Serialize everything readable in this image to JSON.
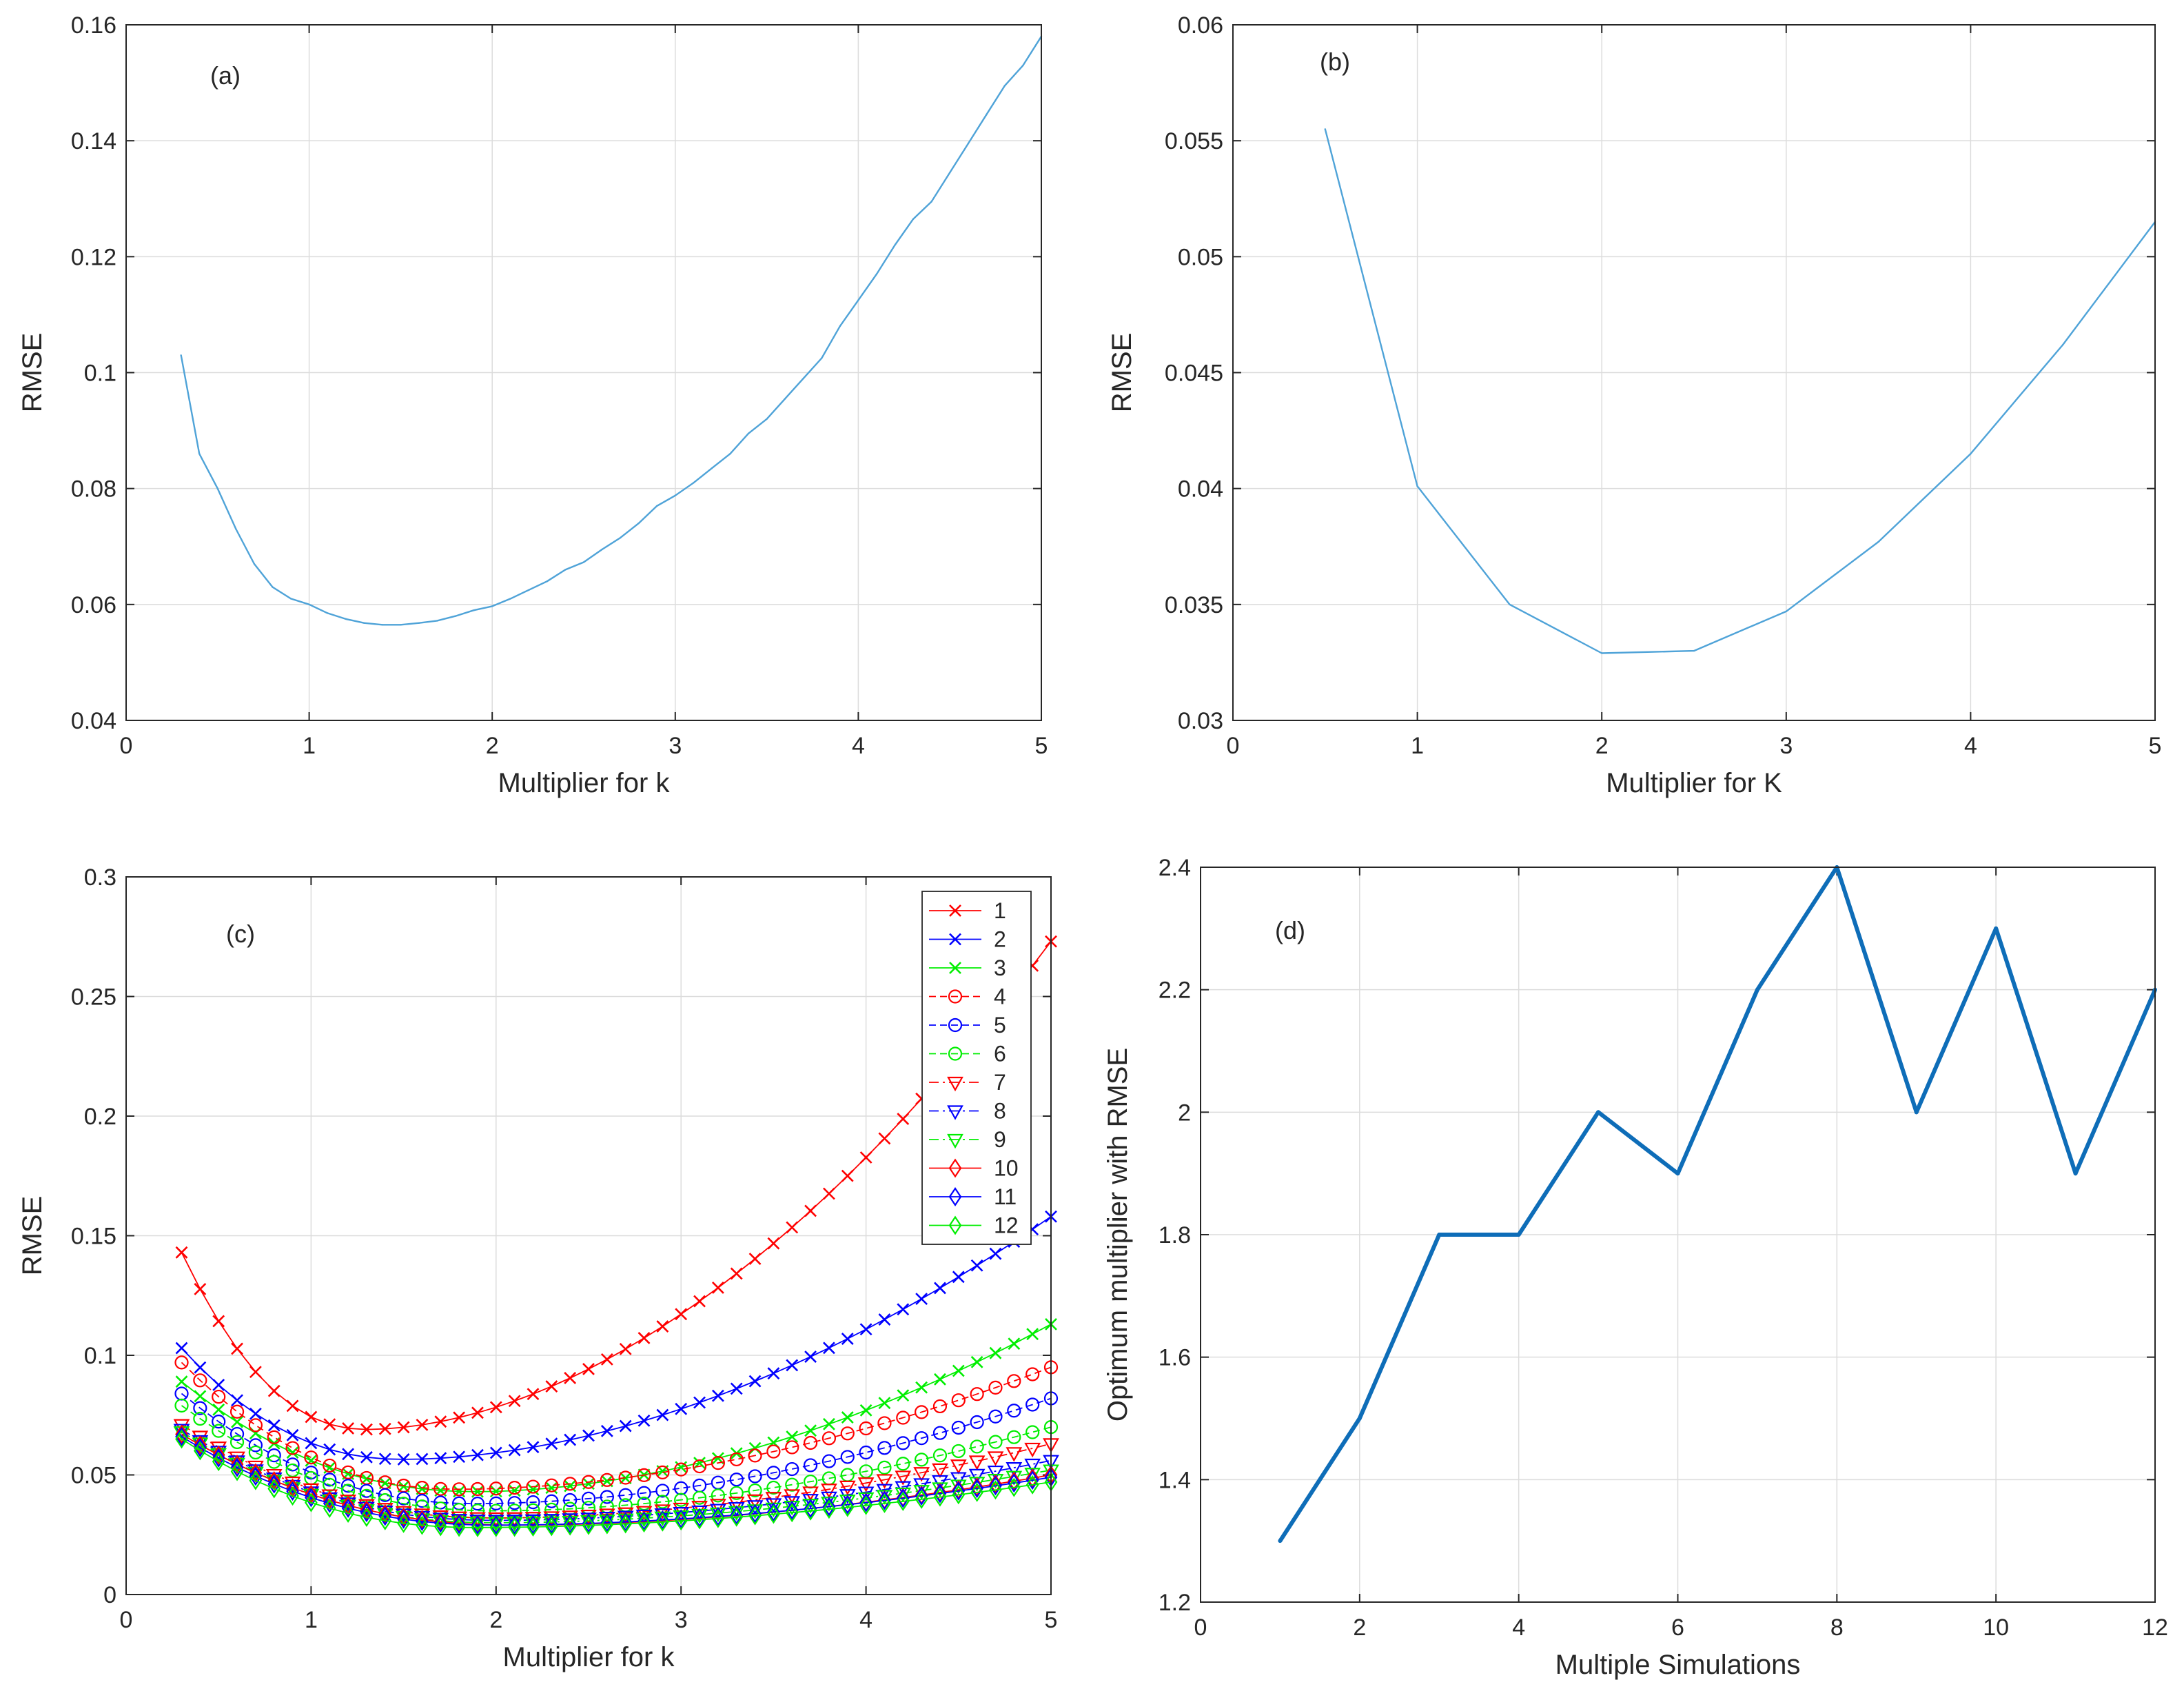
{
  "colors": {
    "axis": "#262626",
    "grid": "#dcdcdc",
    "line_ab": "#4fa3d8",
    "line_d": "#0e6db8",
    "red": "#ff0000",
    "blue": "#0000ff",
    "green": "#00ee00"
  },
  "chart_data": [
    {
      "id": "a",
      "type": "line",
      "panel_label": "(a)",
      "xlabel": "Multiplier for k",
      "ylabel": "RMSE",
      "xlim": [
        0,
        5
      ],
      "ylim": [
        0.04,
        0.16
      ],
      "xticks": [
        "0",
        "1",
        "2",
        "3",
        "4",
        "5"
      ],
      "yticks": [
        "0.04",
        "0.06",
        "0.08",
        "0.1",
        "0.12",
        "0.14",
        "0.16"
      ],
      "grid": true,
      "series": [
        {
          "name": "RMSE",
          "x": [
            0.3,
            0.4,
            0.5,
            0.6,
            0.7,
            0.8,
            0.9,
            1.0,
            1.1,
            1.2,
            1.3,
            1.4,
            1.5,
            1.6,
            1.7,
            1.8,
            1.9,
            2.0,
            2.1,
            2.2,
            2.3,
            2.4,
            2.5,
            2.6,
            2.7,
            2.8,
            2.9,
            3.0,
            3.1,
            3.2,
            3.3,
            3.4,
            3.5,
            3.6,
            3.7,
            3.8,
            3.9,
            4.0,
            4.1,
            4.2,
            4.3,
            4.4,
            4.5,
            4.6,
            4.7,
            4.8,
            4.9,
            5.0
          ],
          "y": [
            0.103,
            0.086,
            0.08,
            0.073,
            0.067,
            0.063,
            0.061,
            0.06,
            0.0585,
            0.0575,
            0.0568,
            0.0565,
            0.0565,
            0.0568,
            0.0572,
            0.058,
            0.059,
            0.0597,
            0.061,
            0.0625,
            0.064,
            0.066,
            0.0673,
            0.0695,
            0.0715,
            0.074,
            0.077,
            0.0788,
            0.081,
            0.0835,
            0.086,
            0.0895,
            0.092,
            0.0955,
            0.099,
            0.1025,
            0.108,
            0.1125,
            0.117,
            0.122,
            0.1265,
            0.1295,
            0.1345,
            0.1395,
            0.1445,
            0.1495,
            0.153,
            0.158
          ]
        }
      ]
    },
    {
      "id": "b",
      "type": "line",
      "panel_label": "(b)",
      "xlabel": "Multiplier for K",
      "ylabel": "RMSE",
      "xlim": [
        0,
        5
      ],
      "ylim": [
        0.03,
        0.06
      ],
      "xticks": [
        "0",
        "1",
        "2",
        "3",
        "4",
        "5"
      ],
      "yticks": [
        "0.03",
        "0.035",
        "0.04",
        "0.045",
        "0.05",
        "0.055",
        "0.06"
      ],
      "grid": true,
      "series": [
        {
          "name": "RMSE",
          "x": [
            0.5,
            1.0,
            1.5,
            2.0,
            2.5,
            3.0,
            3.5,
            4.0,
            4.5,
            5.0
          ],
          "y": [
            0.0555,
            0.0401,
            0.035,
            0.0329,
            0.033,
            0.0347,
            0.0377,
            0.0415,
            0.0462,
            0.0515
          ]
        }
      ]
    },
    {
      "id": "c",
      "type": "line",
      "panel_label": "(c)",
      "xlabel": "Multiplier for k",
      "ylabel": "RMSE",
      "xlim": [
        0,
        5
      ],
      "ylim": [
        0,
        0.3
      ],
      "xticks": [
        "0",
        "1",
        "2",
        "3",
        "4",
        "5"
      ],
      "yticks": [
        "0",
        "0.05",
        "0.1",
        "0.15",
        "0.2",
        "0.25",
        "0.3"
      ],
      "grid": true,
      "legend_position": "top-right",
      "x": [
        0.3,
        0.4,
        0.5,
        0.6,
        0.7,
        0.8,
        0.9,
        1.0,
        1.1,
        1.2,
        1.3,
        1.4,
        1.5,
        1.6,
        1.7,
        1.8,
        1.9,
        2.0,
        2.1,
        2.2,
        2.3,
        2.4,
        2.5,
        2.6,
        2.7,
        2.8,
        2.9,
        3.0,
        3.1,
        3.2,
        3.3,
        3.4,
        3.5,
        3.6,
        3.7,
        3.8,
        3.9,
        4.0,
        4.1,
        4.2,
        4.3,
        4.4,
        4.5,
        4.6,
        4.7,
        4.8,
        4.9,
        5.0
      ],
      "series": [
        {
          "name": "1",
          "color": "red",
          "marker": "x",
          "dash": "solid",
          "y0": 0.143,
          "min": 0.069,
          "xmin": 1.3,
          "end": 0.273
        },
        {
          "name": "2",
          "color": "blue",
          "marker": "x",
          "dash": "solid",
          "y0": 0.103,
          "min": 0.0565,
          "xmin": 1.5,
          "end": 0.158
        },
        {
          "name": "3",
          "color": "green",
          "marker": "x",
          "dash": "solid",
          "y0": 0.089,
          "min": 0.043,
          "xmin": 1.9,
          "end": 0.113
        },
        {
          "name": "4",
          "color": "red",
          "marker": "o",
          "dash": "dashed",
          "y0": 0.097,
          "min": 0.044,
          "xmin": 1.8,
          "end": 0.095
        },
        {
          "name": "5",
          "color": "blue",
          "marker": "o",
          "dash": "dashed",
          "y0": 0.084,
          "min": 0.038,
          "xmin": 1.9,
          "end": 0.082
        },
        {
          "name": "6",
          "color": "green",
          "marker": "o",
          "dash": "dashed",
          "y0": 0.079,
          "min": 0.035,
          "xmin": 2.0,
          "end": 0.07
        },
        {
          "name": "7",
          "color": "red",
          "marker": "tri",
          "dash": "dashdot",
          "y0": 0.071,
          "min": 0.032,
          "xmin": 2.0,
          "end": 0.063
        },
        {
          "name": "8",
          "color": "blue",
          "marker": "tri",
          "dash": "dashdot",
          "y0": 0.069,
          "min": 0.031,
          "xmin": 2.0,
          "end": 0.056
        },
        {
          "name": "9",
          "color": "green",
          "marker": "tri",
          "dash": "dashdot",
          "y0": 0.068,
          "min": 0.03,
          "xmin": 2.0,
          "end": 0.052
        },
        {
          "name": "10",
          "color": "red",
          "marker": "diamond",
          "dash": "solid",
          "y0": 0.067,
          "min": 0.029,
          "xmin": 2.1,
          "end": 0.05
        },
        {
          "name": "11",
          "color": "blue",
          "marker": "diamond",
          "dash": "solid",
          "y0": 0.066,
          "min": 0.029,
          "xmin": 2.0,
          "end": 0.049
        },
        {
          "name": "12",
          "color": "green",
          "marker": "diamond",
          "dash": "solid",
          "y0": 0.065,
          "min": 0.028,
          "xmin": 1.9,
          "end": 0.047
        }
      ]
    },
    {
      "id": "d",
      "type": "line",
      "panel_label": "(d)",
      "xlabel": "Multiple Simulations",
      "ylabel": "Optimum multiplier with RMSE",
      "xlim": [
        0,
        12
      ],
      "ylim": [
        1.2,
        2.4
      ],
      "xticks": [
        "0",
        "2",
        "4",
        "6",
        "8",
        "10",
        "12"
      ],
      "yticks": [
        "1.2",
        "1.4",
        "1.6",
        "1.8",
        "2",
        "2.2",
        "2.4"
      ],
      "grid": true,
      "series": [
        {
          "name": "Optimum multiplier",
          "x": [
            1,
            2,
            3,
            4,
            5,
            6,
            7,
            8,
            9,
            10,
            11,
            12
          ],
          "y": [
            1.3,
            1.5,
            1.8,
            1.8,
            2.0,
            1.9,
            2.2,
            2.4,
            2.0,
            2.3,
            1.9,
            2.2
          ]
        }
      ]
    }
  ]
}
